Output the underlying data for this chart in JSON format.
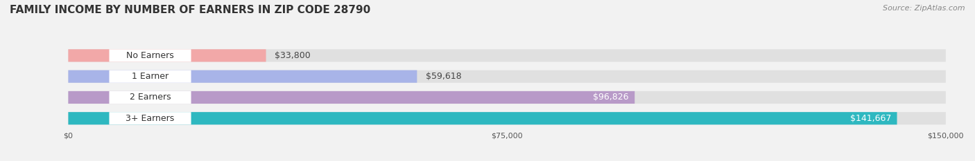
{
  "title": "FAMILY INCOME BY NUMBER OF EARNERS IN ZIP CODE 28790",
  "source": "Source: ZipAtlas.com",
  "categories": [
    "No Earners",
    "1 Earner",
    "2 Earners",
    "3+ Earners"
  ],
  "values": [
    33800,
    59618,
    96826,
    141667
  ],
  "bar_colors": [
    "#f2a8a8",
    "#a8b4e8",
    "#b89ac8",
    "#2eb8c0"
  ],
  "label_colors": [
    "#444444",
    "#444444",
    "#ffffff",
    "#ffffff"
  ],
  "bg_color": "#f2f2f2",
  "bar_bg_color": "#e0e0e0",
  "xlim": [
    0,
    150000
  ],
  "xticks": [
    0,
    75000,
    150000
  ],
  "xtick_labels": [
    "$0",
    "$75,000",
    "$150,000"
  ],
  "value_labels": [
    "$33,800",
    "$59,618",
    "$96,826",
    "$141,667"
  ],
  "title_fontsize": 11,
  "source_fontsize": 8,
  "label_fontsize": 9,
  "tick_fontsize": 8
}
